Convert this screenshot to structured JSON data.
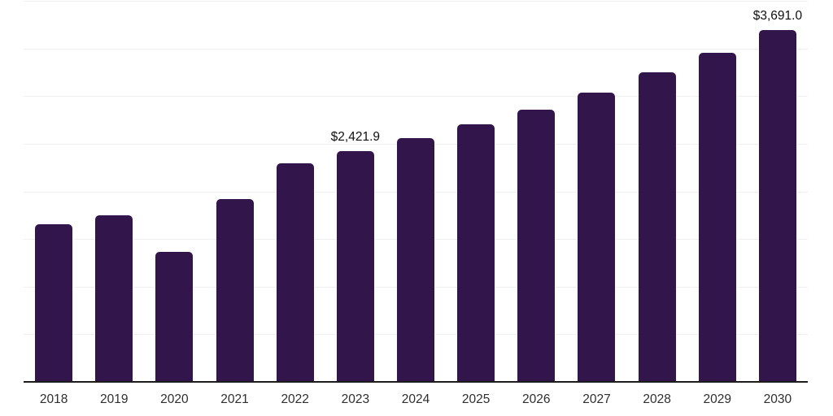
{
  "chart_data": {
    "type": "bar",
    "title": "",
    "xlabel": "",
    "ylabel": "",
    "categories": [
      "2018",
      "2019",
      "2020",
      "2021",
      "2022",
      "2023",
      "2024",
      "2025",
      "2026",
      "2027",
      "2028",
      "2029",
      "2030"
    ],
    "values": [
      1654,
      1748,
      1364,
      1918,
      2294,
      2421.9,
      2558,
      2703,
      2856,
      3035,
      3248,
      3453,
      3691.0
    ],
    "data_labels": {
      "2023": "$2,421.9",
      "2030": "$3,691.0"
    },
    "ylim": [
      0,
      4000
    ],
    "grid": true,
    "grid_step": 500,
    "legend": false,
    "colors": {
      "bar": "#32154a",
      "gridline": "#f1f1f1",
      "axis": "#1c1c1c",
      "tick_text": "#2e2e2e",
      "data_label_text": "#0f0f0f",
      "background": "#ffffff"
    }
  }
}
